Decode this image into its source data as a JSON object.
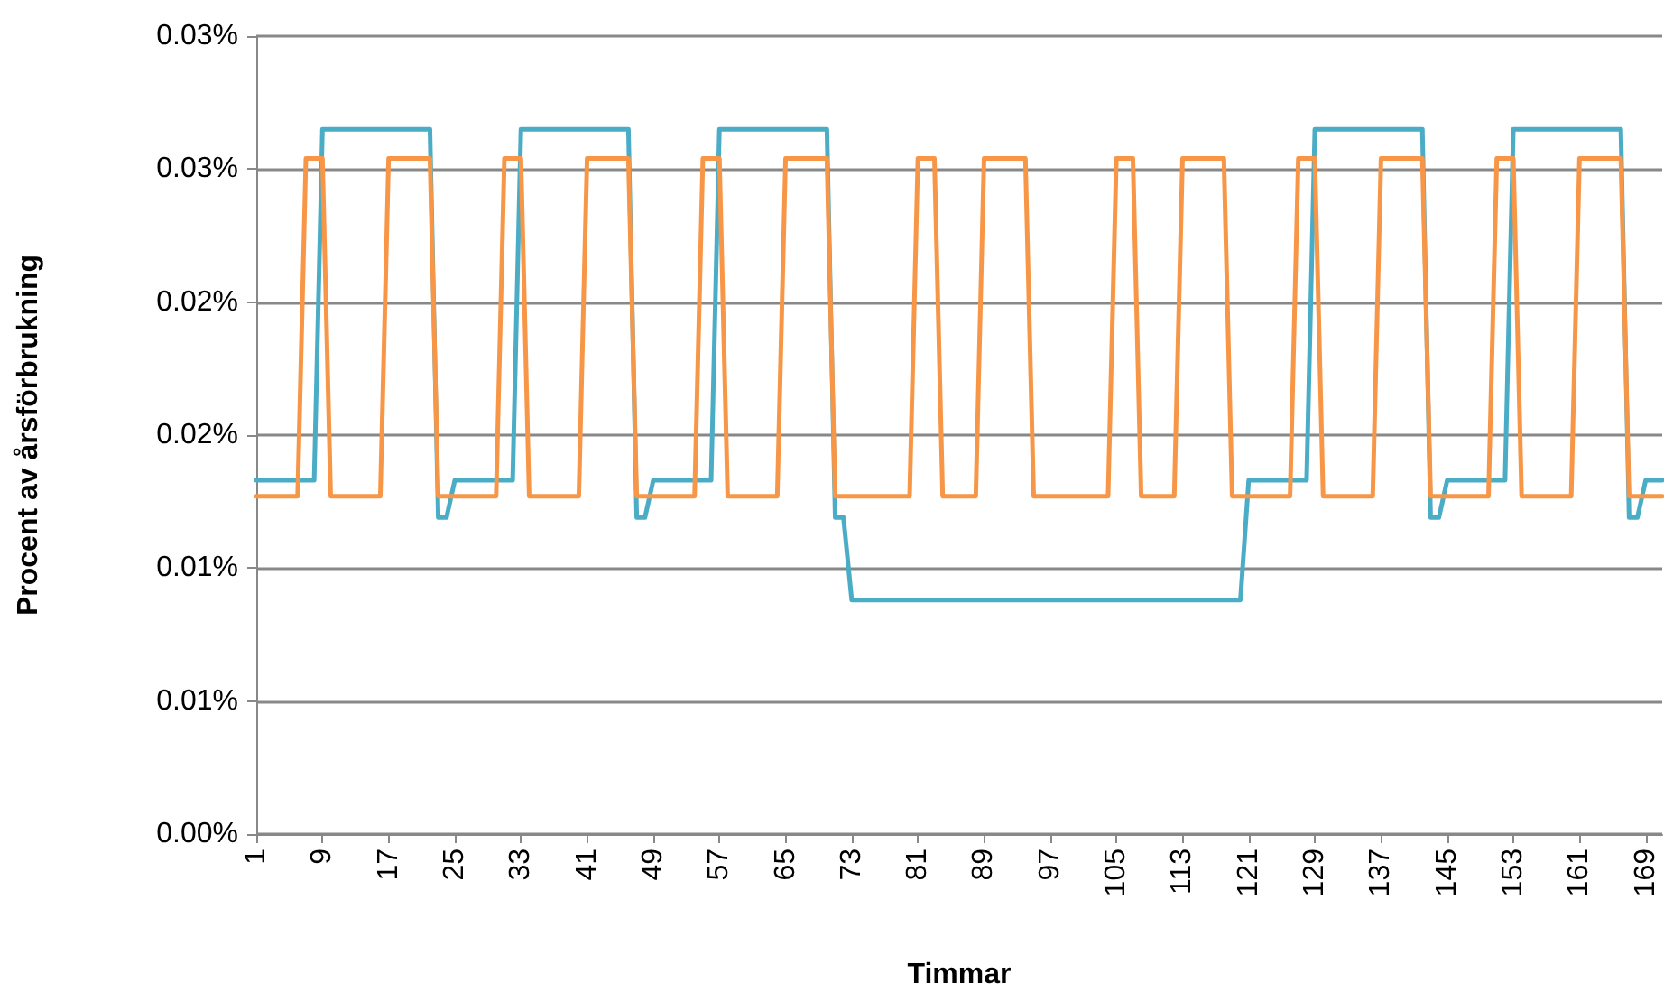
{
  "chart_data": {
    "type": "line",
    "xlabel": "Timmar",
    "ylabel": "Procent av årsförbrukning",
    "categories": [
      "1",
      null,
      null,
      null,
      null,
      null,
      null,
      null,
      "9",
      null,
      null,
      null,
      null,
      null,
      null,
      null,
      "17",
      null,
      null,
      null,
      null,
      null,
      null,
      null,
      "25",
      null,
      null,
      null,
      null,
      null,
      null,
      null,
      "33",
      null,
      null,
      null,
      null,
      null,
      null,
      null,
      "41",
      null,
      null,
      null,
      null,
      null,
      null,
      null,
      "49",
      null,
      null,
      null,
      null,
      null,
      null,
      null,
      "57",
      null,
      null,
      null,
      null,
      null,
      null,
      null,
      "65",
      null,
      null,
      null,
      null,
      null,
      null,
      null,
      "73",
      null,
      null,
      null,
      null,
      null,
      null,
      null,
      "81",
      null,
      null,
      null,
      null,
      null,
      null,
      null,
      "89",
      null,
      null,
      null,
      null,
      null,
      null,
      null,
      "97",
      null,
      null,
      null,
      null,
      null,
      null,
      null,
      "105",
      null,
      null,
      null,
      null,
      null,
      null,
      null,
      "113",
      null,
      null,
      null,
      null,
      null,
      null,
      null,
      "121",
      null,
      null,
      null,
      null,
      null,
      null,
      null,
      "129",
      null,
      null,
      null,
      null,
      null,
      null,
      null,
      "137",
      null,
      null,
      null,
      null,
      null,
      null,
      null,
      "145",
      null,
      null,
      null,
      null,
      null,
      null,
      null,
      "153",
      null,
      null,
      null,
      null,
      null,
      null,
      null,
      "161",
      null,
      null,
      null,
      null,
      null,
      null,
      null,
      "169",
      null,
      null
    ],
    "series": [
      {
        "color": "#4bacc6",
        "values": [
          0.0133,
          0.0133,
          0.0133,
          0.0133,
          0.0133,
          0.0133,
          0.0133,
          0.0133,
          0.0265,
          0.0265,
          0.0265,
          0.0265,
          0.0265,
          0.0265,
          0.0265,
          0.0265,
          0.0265,
          0.0265,
          0.0265,
          0.0265,
          0.0265,
          0.0265,
          0.0119,
          0.0119,
          0.0133,
          0.0133,
          0.0133,
          0.0133,
          0.0133,
          0.0133,
          0.0133,
          0.0133,
          0.0265,
          0.0265,
          0.0265,
          0.0265,
          0.0265,
          0.0265,
          0.0265,
          0.0265,
          0.0265,
          0.0265,
          0.0265,
          0.0265,
          0.0265,
          0.0265,
          0.0119,
          0.0119,
          0.0133,
          0.0133,
          0.0133,
          0.0133,
          0.0133,
          0.0133,
          0.0133,
          0.0133,
          0.0265,
          0.0265,
          0.0265,
          0.0265,
          0.0265,
          0.0265,
          0.0265,
          0.0265,
          0.0265,
          0.0265,
          0.0265,
          0.0265,
          0.0265,
          0.0265,
          0.0119,
          0.0119,
          0.0088,
          0.0088,
          0.0088,
          0.0088,
          0.0088,
          0.0088,
          0.0088,
          0.0088,
          0.0088,
          0.0088,
          0.0088,
          0.0088,
          0.0088,
          0.0088,
          0.0088,
          0.0088,
          0.0088,
          0.0088,
          0.0088,
          0.0088,
          0.0088,
          0.0088,
          0.0088,
          0.0088,
          0.0088,
          0.0088,
          0.0088,
          0.0088,
          0.0088,
          0.0088,
          0.0088,
          0.0088,
          0.0088,
          0.0088,
          0.0088,
          0.0088,
          0.0088,
          0.0088,
          0.0088,
          0.0088,
          0.0088,
          0.0088,
          0.0088,
          0.0088,
          0.0088,
          0.0088,
          0.0088,
          0.0088,
          0.0133,
          0.0133,
          0.0133,
          0.0133,
          0.0133,
          0.0133,
          0.0133,
          0.0133,
          0.0265,
          0.0265,
          0.0265,
          0.0265,
          0.0265,
          0.0265,
          0.0265,
          0.0265,
          0.0265,
          0.0265,
          0.0265,
          0.0265,
          0.0265,
          0.0265,
          0.0119,
          0.0119,
          0.0133,
          0.0133,
          0.0133,
          0.0133,
          0.0133,
          0.0133,
          0.0133,
          0.0133,
          0.0265,
          0.0265,
          0.0265,
          0.0265,
          0.0265,
          0.0265,
          0.0265,
          0.0265,
          0.0265,
          0.0265,
          0.0265,
          0.0265,
          0.0265,
          0.0265,
          0.0119,
          0.0119,
          0.0133,
          0.0133,
          0.0133
        ]
      },
      {
        "color": "#f79646",
        "values": [
          0.0127,
          0.0127,
          0.0127,
          0.0127,
          0.0127,
          0.0127,
          0.0254,
          0.0254,
          0.0254,
          0.0127,
          0.0127,
          0.0127,
          0.0127,
          0.0127,
          0.0127,
          0.0127,
          0.0254,
          0.0254,
          0.0254,
          0.0254,
          0.0254,
          0.0254,
          0.0127,
          0.0127,
          0.0127,
          0.0127,
          0.0127,
          0.0127,
          0.0127,
          0.0127,
          0.0254,
          0.0254,
          0.0254,
          0.0127,
          0.0127,
          0.0127,
          0.0127,
          0.0127,
          0.0127,
          0.0127,
          0.0254,
          0.0254,
          0.0254,
          0.0254,
          0.0254,
          0.0254,
          0.0127,
          0.0127,
          0.0127,
          0.0127,
          0.0127,
          0.0127,
          0.0127,
          0.0127,
          0.0254,
          0.0254,
          0.0254,
          0.0127,
          0.0127,
          0.0127,
          0.0127,
          0.0127,
          0.0127,
          0.0127,
          0.0254,
          0.0254,
          0.0254,
          0.0254,
          0.0254,
          0.0254,
          0.0127,
          0.0127,
          0.0127,
          0.0127,
          0.0127,
          0.0127,
          0.0127,
          0.0127,
          0.0127,
          0.0127,
          0.0254,
          0.0254,
          0.0254,
          0.0127,
          0.0127,
          0.0127,
          0.0127,
          0.0127,
          0.0254,
          0.0254,
          0.0254,
          0.0254,
          0.0254,
          0.0254,
          0.0127,
          0.0127,
          0.0127,
          0.0127,
          0.0127,
          0.0127,
          0.0127,
          0.0127,
          0.0127,
          0.0127,
          0.0254,
          0.0254,
          0.0254,
          0.0127,
          0.0127,
          0.0127,
          0.0127,
          0.0127,
          0.0254,
          0.0254,
          0.0254,
          0.0254,
          0.0254,
          0.0254,
          0.0127,
          0.0127,
          0.0127,
          0.0127,
          0.0127,
          0.0127,
          0.0127,
          0.0127,
          0.0254,
          0.0254,
          0.0254,
          0.0127,
          0.0127,
          0.0127,
          0.0127,
          0.0127,
          0.0127,
          0.0127,
          0.0254,
          0.0254,
          0.0254,
          0.0254,
          0.0254,
          0.0254,
          0.0127,
          0.0127,
          0.0127,
          0.0127,
          0.0127,
          0.0127,
          0.0127,
          0.0127,
          0.0254,
          0.0254,
          0.0254,
          0.0127,
          0.0127,
          0.0127,
          0.0127,
          0.0127,
          0.0127,
          0.0127,
          0.0254,
          0.0254,
          0.0254,
          0.0254,
          0.0254,
          0.0254,
          0.0127,
          0.0127,
          0.0127,
          0.0127,
          0.0127
        ]
      }
    ],
    "ylim": [
      0,
      0.03
    ],
    "yticks": [
      {
        "value": 0,
        "label": "0.00%"
      },
      {
        "value": 0.005,
        "label": "0.01%"
      },
      {
        "value": 0.01,
        "label": "0.01%"
      },
      {
        "value": 0.015,
        "label": "0.02%"
      },
      {
        "value": 0.02,
        "label": "0.02%"
      },
      {
        "value": 0.025,
        "label": "0.03%"
      },
      {
        "value": 0.03,
        "label": "0.03%"
      }
    ],
    "grid": "y",
    "marker": "none",
    "line_style": "solid"
  }
}
